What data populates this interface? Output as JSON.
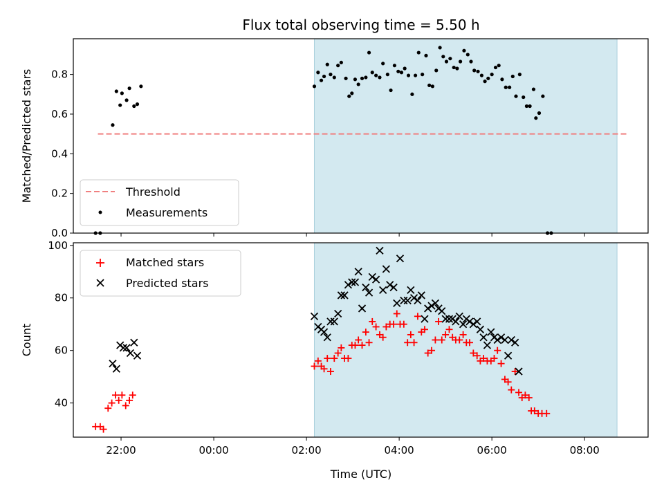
{
  "chart_data": {
    "title": "Flux total observing time = 5.50 h",
    "xlabel": "Time (UTC)",
    "x_ticks": [
      "22:00",
      "00:00",
      "02:00",
      "04:00",
      "06:00",
      "08:00"
    ],
    "x_tick_hours": [
      22,
      24,
      26,
      28,
      30,
      32
    ],
    "xlim_hours": [
      20.97,
      33.37
    ],
    "shaded_interval_hours": [
      26.17,
      32.7
    ],
    "shade_color": "#d3e9f0",
    "panels": [
      {
        "type": "scatter",
        "ylabel": "Matched/Predicted stars",
        "ylim": [
          0,
          0.98
        ],
        "y_ticks": [
          "0.0",
          "0.2",
          "0.4",
          "0.6",
          "0.8"
        ],
        "y_tick_values": [
          0,
          0.2,
          0.4,
          0.6,
          0.8
        ],
        "legend_position": "lower-left",
        "threshold": {
          "name": "Threshold",
          "value": 0.5,
          "x_range_hours": [
            21.5,
            32.93
          ],
          "color": "#f08080"
        },
        "series": [
          {
            "name": "Measurements",
            "color": "#000000",
            "marker": "dot",
            "points": [
              [
                21.45,
                0.0
              ],
              [
                21.55,
                0.0
              ],
              [
                21.82,
                0.545
              ],
              [
                21.9,
                0.715
              ],
              [
                21.98,
                0.645
              ],
              [
                22.02,
                0.705
              ],
              [
                22.12,
                0.67
              ],
              [
                22.18,
                0.73
              ],
              [
                22.28,
                0.64
              ],
              [
                22.35,
                0.65
              ],
              [
                22.43,
                0.74
              ],
              [
                26.17,
                0.74
              ],
              [
                26.25,
                0.81
              ],
              [
                26.32,
                0.77
              ],
              [
                26.38,
                0.79
              ],
              [
                26.45,
                0.85
              ],
              [
                26.52,
                0.8
              ],
              [
                26.6,
                0.785
              ],
              [
                26.68,
                0.845
              ],
              [
                26.75,
                0.86
              ],
              [
                26.85,
                0.78
              ],
              [
                26.92,
                0.69
              ],
              [
                26.98,
                0.705
              ],
              [
                27.05,
                0.775
              ],
              [
                27.12,
                0.75
              ],
              [
                27.2,
                0.78
              ],
              [
                27.28,
                0.785
              ],
              [
                27.35,
                0.91
              ],
              [
                27.42,
                0.81
              ],
              [
                27.5,
                0.795
              ],
              [
                27.58,
                0.785
              ],
              [
                27.65,
                0.855
              ],
              [
                27.75,
                0.8
              ],
              [
                27.82,
                0.72
              ],
              [
                27.9,
                0.845
              ],
              [
                27.98,
                0.815
              ],
              [
                28.05,
                0.81
              ],
              [
                28.12,
                0.83
              ],
              [
                28.2,
                0.795
              ],
              [
                28.28,
                0.7
              ],
              [
                28.35,
                0.795
              ],
              [
                28.42,
                0.91
              ],
              [
                28.5,
                0.8
              ],
              [
                28.58,
                0.895
              ],
              [
                28.65,
                0.745
              ],
              [
                28.72,
                0.74
              ],
              [
                28.8,
                0.82
              ],
              [
                28.88,
                0.935
              ],
              [
                28.95,
                0.89
              ],
              [
                29.02,
                0.865
              ],
              [
                29.1,
                0.88
              ],
              [
                29.18,
                0.835
              ],
              [
                29.25,
                0.83
              ],
              [
                29.32,
                0.865
              ],
              [
                29.4,
                0.92
              ],
              [
                29.48,
                0.9
              ],
              [
                29.55,
                0.865
              ],
              [
                29.62,
                0.82
              ],
              [
                29.7,
                0.815
              ],
              [
                29.78,
                0.795
              ],
              [
                29.85,
                0.765
              ],
              [
                29.92,
                0.78
              ],
              [
                30.0,
                0.8
              ],
              [
                30.08,
                0.835
              ],
              [
                30.15,
                0.845
              ],
              [
                30.22,
                0.775
              ],
              [
                30.3,
                0.735
              ],
              [
                30.38,
                0.735
              ],
              [
                30.45,
                0.79
              ],
              [
                30.52,
                0.69
              ],
              [
                30.6,
                0.8
              ],
              [
                30.68,
                0.685
              ],
              [
                30.75,
                0.64
              ],
              [
                30.82,
                0.64
              ],
              [
                30.9,
                0.725
              ],
              [
                30.95,
                0.58
              ],
              [
                31.02,
                0.605
              ],
              [
                31.1,
                0.69
              ],
              [
                31.2,
                0.0
              ],
              [
                31.28,
                0.0
              ]
            ]
          }
        ]
      },
      {
        "type": "scatter",
        "ylabel": "Count",
        "ylim": [
          27,
          101
        ],
        "y_ticks": [
          "40",
          "60",
          "80",
          "100"
        ],
        "y_tick_values": [
          40,
          60,
          80,
          100
        ],
        "legend_position": "top-left",
        "series": [
          {
            "name": "Matched stars",
            "color": "#ff0000",
            "marker": "plus",
            "points": [
              [
                21.45,
                31
              ],
              [
                21.55,
                31
              ],
              [
                21.62,
                30
              ],
              [
                21.72,
                38
              ],
              [
                21.8,
                40
              ],
              [
                21.88,
                43
              ],
              [
                21.95,
                41
              ],
              [
                22.02,
                43
              ],
              [
                22.1,
                39
              ],
              [
                22.18,
                41
              ],
              [
                22.25,
                43
              ],
              [
                26.17,
                54
              ],
              [
                26.25,
                56
              ],
              [
                26.32,
                54
              ],
              [
                26.38,
                53
              ],
              [
                26.45,
                57
              ],
              [
                26.52,
                52
              ],
              [
                26.6,
                57
              ],
              [
                26.68,
                59
              ],
              [
                26.75,
                61
              ],
              [
                26.82,
                57
              ],
              [
                26.9,
                57
              ],
              [
                26.98,
                62
              ],
              [
                27.05,
                62
              ],
              [
                27.12,
                64
              ],
              [
                27.2,
                62
              ],
              [
                27.28,
                67
              ],
              [
                27.35,
                63
              ],
              [
                27.42,
                71
              ],
              [
                27.5,
                69
              ],
              [
                27.58,
                66
              ],
              [
                27.65,
                65
              ],
              [
                27.72,
                69
              ],
              [
                27.8,
                70
              ],
              [
                27.88,
                70
              ],
              [
                27.95,
                74
              ],
              [
                28.02,
                70
              ],
              [
                28.1,
                70
              ],
              [
                28.18,
                63
              ],
              [
                28.25,
                66
              ],
              [
                28.32,
                63
              ],
              [
                28.4,
                73
              ],
              [
                28.48,
                67
              ],
              [
                28.55,
                68
              ],
              [
                28.62,
                59
              ],
              [
                28.7,
                60
              ],
              [
                28.78,
                64
              ],
              [
                28.85,
                71
              ],
              [
                28.92,
                64
              ],
              [
                29.0,
                66
              ],
              [
                29.08,
                68
              ],
              [
                29.15,
                65
              ],
              [
                29.22,
                64
              ],
              [
                29.3,
                64
              ],
              [
                29.38,
                66
              ],
              [
                29.45,
                63
              ],
              [
                29.52,
                63
              ],
              [
                29.6,
                59
              ],
              [
                29.68,
                58
              ],
              [
                29.75,
                56
              ],
              [
                29.82,
                57
              ],
              [
                29.9,
                56
              ],
              [
                29.98,
                56
              ],
              [
                30.05,
                57
              ],
              [
                30.12,
                60
              ],
              [
                30.2,
                55
              ],
              [
                30.28,
                49
              ],
              [
                30.35,
                48
              ],
              [
                30.42,
                45
              ],
              [
                30.5,
                52
              ],
              [
                30.58,
                44
              ],
              [
                30.65,
                42
              ],
              [
                30.72,
                43
              ],
              [
                30.8,
                42
              ],
              [
                30.85,
                37
              ],
              [
                30.92,
                37
              ],
              [
                31.0,
                36
              ],
              [
                31.08,
                36
              ],
              [
                31.18,
                36
              ]
            ]
          },
          {
            "name": "Predicted stars",
            "color": "#000000",
            "marker": "x",
            "points": [
              [
                21.82,
                55
              ],
              [
                21.9,
                53
              ],
              [
                21.98,
                62
              ],
              [
                22.05,
                61
              ],
              [
                22.12,
                61
              ],
              [
                22.2,
                59
              ],
              [
                22.28,
                63
              ],
              [
                22.35,
                58
              ],
              [
                26.17,
                73
              ],
              [
                26.25,
                69
              ],
              [
                26.32,
                68
              ],
              [
                26.38,
                67
              ],
              [
                26.45,
                65
              ],
              [
                26.52,
                71
              ],
              [
                26.6,
                71
              ],
              [
                26.68,
                74
              ],
              [
                26.75,
                81
              ],
              [
                26.82,
                81
              ],
              [
                26.9,
                85
              ],
              [
                26.98,
                86
              ],
              [
                27.05,
                86
              ],
              [
                27.12,
                90
              ],
              [
                27.2,
                76
              ],
              [
                27.28,
                84
              ],
              [
                27.35,
                82
              ],
              [
                27.42,
                88
              ],
              [
                27.5,
                87
              ],
              [
                27.58,
                98
              ],
              [
                27.65,
                83
              ],
              [
                27.72,
                91
              ],
              [
                27.8,
                85
              ],
              [
                27.88,
                84
              ],
              [
                27.95,
                78
              ],
              [
                28.02,
                95
              ],
              [
                28.1,
                79
              ],
              [
                28.18,
                79
              ],
              [
                28.25,
                83
              ],
              [
                28.32,
                80
              ],
              [
                28.4,
                79
              ],
              [
                28.48,
                81
              ],
              [
                28.55,
                72
              ],
              [
                28.62,
                76
              ],
              [
                28.7,
                77
              ],
              [
                28.78,
                78
              ],
              [
                28.85,
                76
              ],
              [
                28.92,
                75
              ],
              [
                29.0,
                72
              ],
              [
                29.08,
                72
              ],
              [
                29.15,
                72
              ],
              [
                29.22,
                71
              ],
              [
                29.3,
                73
              ],
              [
                29.38,
                70
              ],
              [
                29.45,
                72
              ],
              [
                29.52,
                71
              ],
              [
                29.6,
                70
              ],
              [
                29.68,
                71
              ],
              [
                29.75,
                68
              ],
              [
                29.82,
                65
              ],
              [
                29.9,
                62
              ],
              [
                29.98,
                67
              ],
              [
                30.05,
                65
              ],
              [
                30.12,
                64
              ],
              [
                30.2,
                65
              ],
              [
                30.28,
                64
              ],
              [
                30.35,
                58
              ],
              [
                30.42,
                64
              ],
              [
                30.5,
                63
              ],
              [
                30.58,
                52
              ]
            ]
          }
        ]
      }
    ]
  }
}
